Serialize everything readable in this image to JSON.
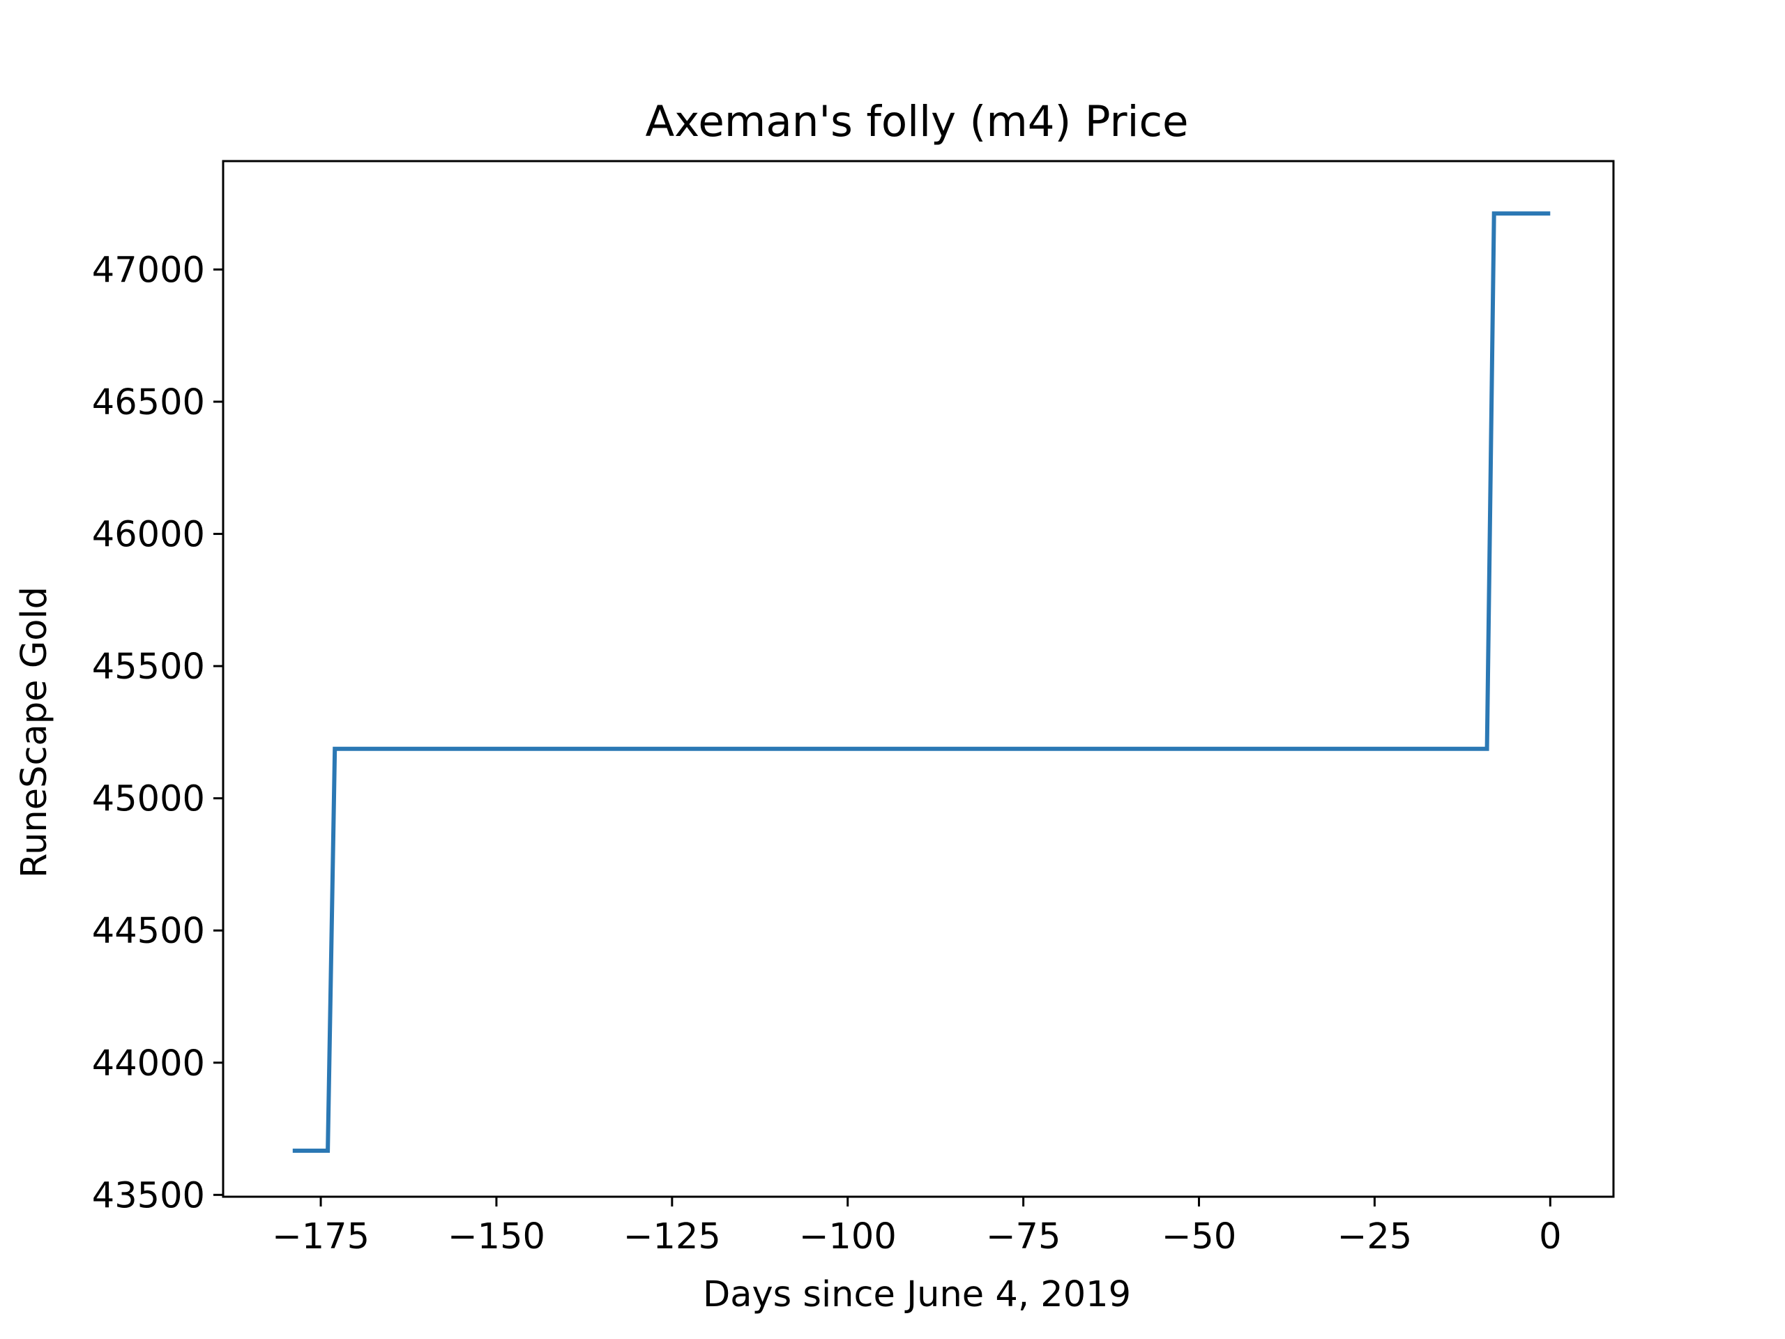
{
  "chart_data": {
    "type": "line",
    "title": "Axeman's folly (m4) Price",
    "xlabel": "Days since June 4, 2019",
    "ylabel": "RuneScape Gold",
    "xlim": [
      -188.9,
      9
    ],
    "ylim": [
      43493,
      47410
    ],
    "x_ticks": [
      -175,
      -150,
      -125,
      -100,
      -75,
      -50,
      -25,
      0
    ],
    "y_ticks": [
      43500,
      44000,
      44500,
      45000,
      45500,
      46000,
      46500,
      47000
    ],
    "grid": false,
    "legend": "none",
    "line_color": "#2b78b4",
    "series": [
      {
        "x": [
          -179,
          -174,
          -173,
          -9,
          -8,
          0
        ],
        "values": [
          43667,
          43667,
          45187,
          45187,
          47212,
          47212
        ]
      }
    ]
  }
}
